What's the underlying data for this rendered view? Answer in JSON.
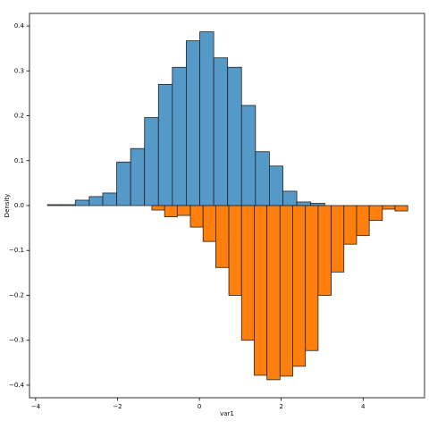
{
  "chart_data": {
    "type": "histogram",
    "xlabel": "var1",
    "ylabel": "Density",
    "xlim": [
      -4.15,
      5.5
    ],
    "xticks": [
      {
        "value": -4,
        "label": "−4"
      },
      {
        "value": -2,
        "label": "−2"
      },
      0,
      2,
      4
    ],
    "ylim": [
      -0.428,
      0.428
    ],
    "yticks": [
      {
        "value": -0.4,
        "label": "−0.4"
      },
      {
        "value": -0.3,
        "label": "−0.3"
      },
      {
        "value": -0.2,
        "label": "−0.2"
      },
      {
        "value": -0.1,
        "label": "−0.1"
      },
      {
        "value": 0,
        "label": "0.0"
      },
      0.1,
      0.2,
      0.3,
      0.4
    ],
    "series": [
      {
        "color": "#5599c8",
        "bins": [
          -3.71,
          -3.37,
          -3.03,
          -2.69,
          -2.36,
          -2.02,
          -1.68,
          -1.34,
          -1.0,
          -0.66,
          -0.32,
          0.01,
          0.35,
          0.69,
          1.03,
          1.37,
          1.71,
          2.04,
          2.38,
          2.72,
          3.06
        ],
        "values": [
          0.002,
          0.002,
          0.012,
          0.02,
          0.028,
          0.097,
          0.127,
          0.196,
          0.27,
          0.308,
          0.367,
          0.387,
          0.329,
          0.308,
          0.223,
          0.12,
          0.088,
          0.032,
          0.008,
          0.005
        ]
      },
      {
        "color": "#ff7f0e",
        "bins": [
          -1.16,
          -0.85,
          -0.54,
          -0.22,
          0.09,
          0.4,
          0.72,
          1.03,
          1.34,
          1.65,
          1.97,
          2.28,
          2.59,
          2.9,
          3.22,
          3.53,
          3.84,
          4.15,
          4.47,
          4.78,
          5.09
        ],
        "values": [
          -0.01,
          -0.025,
          -0.022,
          -0.048,
          -0.08,
          -0.138,
          -0.2,
          -0.3,
          -0.378,
          -0.388,
          -0.38,
          -0.358,
          -0.323,
          -0.2,
          -0.148,
          -0.086,
          -0.067,
          -0.033,
          -0.008,
          -0.012
        ]
      }
    ]
  }
}
